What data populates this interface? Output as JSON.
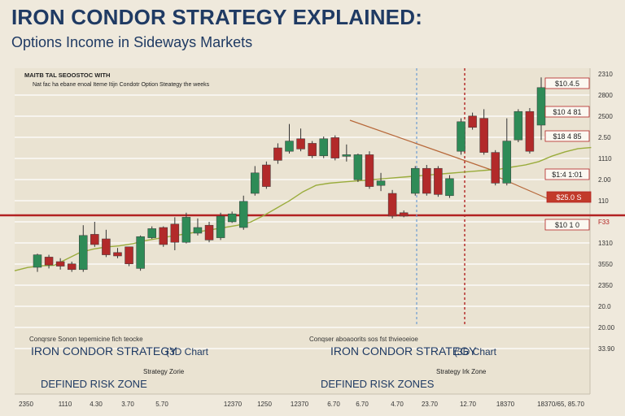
{
  "header": {
    "title": "IRON CONDOR STRATEGY EXPLAINED:",
    "subtitle": "Options  Income in Sideways Markets"
  },
  "chart_data": {
    "type": "candlestick",
    "note_line1": "MAITB TAL SEOOSTOC WITH",
    "note_line2": "Nat fac ha ebane enoal Iteme Itijn Condotr Option Steategy the weeks",
    "x_ticks": [
      "2350",
      "1110",
      "4.30",
      "3.70",
      "5.70",
      "12370",
      "1250",
      "12370",
      "6.70",
      "6.70",
      "4.70",
      "23.70",
      "12.70",
      "18370",
      "18370/65, 85.70"
    ],
    "y_ticks": [
      "2310",
      "2800",
      "2500",
      "2.50",
      "1110",
      "2.00",
      "110",
      "F33",
      "1310",
      "3550",
      "2350",
      "20.0",
      "20.00",
      "33.90"
    ],
    "y_tick_colors": [
      "#333333",
      "#333333",
      "#333333",
      "#333333",
      "#333333",
      "#333333",
      "#333333",
      "#b22222",
      "#333333",
      "#333333",
      "#333333",
      "#333333",
      "#333333",
      "#333333"
    ],
    "price_tags": [
      "$10.4.5",
      "$10 4 81",
      "$18 4 85",
      "$1:4 1:01",
      "$25.0 S",
      "$10 1 0"
    ],
    "candles": [
      {
        "o": 22.0,
        "c": 24.2,
        "h": 24.4,
        "l": 21.2
      },
      {
        "o": 23.8,
        "c": 22.4,
        "h": 24.2,
        "l": 21.8
      },
      {
        "o": 23.0,
        "c": 22.2,
        "h": 23.6,
        "l": 21.6
      },
      {
        "o": 22.6,
        "c": 21.6,
        "h": 23.0,
        "l": 21.2
      },
      {
        "o": 21.6,
        "c": 27.6,
        "h": 29.4,
        "l": 21.2
      },
      {
        "o": 27.8,
        "c": 26.0,
        "h": 30.0,
        "l": 25.6
      },
      {
        "o": 27.0,
        "c": 24.2,
        "h": 28.6,
        "l": 23.8
      },
      {
        "o": 24.6,
        "c": 24.0,
        "h": 25.4,
        "l": 23.6
      },
      {
        "o": 25.6,
        "c": 22.6,
        "h": 25.6,
        "l": 22.2
      },
      {
        "o": 21.8,
        "c": 27.4,
        "h": 27.6,
        "l": 21.4
      },
      {
        "o": 27.2,
        "c": 28.8,
        "h": 29.2,
        "l": 27.0
      },
      {
        "o": 29.0,
        "c": 26.0,
        "h": 29.2,
        "l": 25.6
      },
      {
        "o": 29.6,
        "c": 26.4,
        "h": 30.8,
        "l": 25.0
      },
      {
        "o": 26.4,
        "c": 30.8,
        "h": 31.6,
        "l": 26.2
      },
      {
        "o": 28.0,
        "c": 29.0,
        "h": 30.6,
        "l": 27.6
      },
      {
        "o": 29.4,
        "c": 26.8,
        "h": 30.0,
        "l": 26.4
      },
      {
        "o": 27.2,
        "c": 31.0,
        "h": 31.6,
        "l": 26.8
      },
      {
        "o": 30.0,
        "c": 31.4,
        "h": 31.8,
        "l": 29.8
      },
      {
        "o": 29.0,
        "c": 33.6,
        "h": 34.6,
        "l": 28.6
      },
      {
        "o": 35.0,
        "c": 38.6,
        "h": 39.8,
        "l": 34.6
      },
      {
        "o": 40.0,
        "c": 36.2,
        "h": 40.6,
        "l": 35.8
      },
      {
        "o": 43.0,
        "c": 40.8,
        "h": 43.8,
        "l": 40.2
      },
      {
        "o": 42.4,
        "c": 44.2,
        "h": 47.2,
        "l": 42.0
      },
      {
        "o": 44.6,
        "c": 42.8,
        "h": 46.4,
        "l": 42.4
      },
      {
        "o": 43.8,
        "c": 41.6,
        "h": 44.2,
        "l": 41.2
      },
      {
        "o": 41.6,
        "c": 44.6,
        "h": 45.0,
        "l": 41.2
      },
      {
        "o": 44.8,
        "c": 41.2,
        "h": 45.2,
        "l": 40.8
      },
      {
        "o": 41.8,
        "c": 41.8,
        "h": 43.6,
        "l": 40.6
      },
      {
        "o": 37.4,
        "c": 41.8,
        "h": 42.0,
        "l": 37.0
      },
      {
        "o": 41.8,
        "c": 36.2,
        "h": 42.4,
        "l": 35.8
      },
      {
        "o": 36.4,
        "c": 37.2,
        "h": 38.6,
        "l": 35.4
      },
      {
        "o": 35.0,
        "c": 31.0,
        "h": 35.6,
        "l": 30.6
      },
      {
        "o": 31.6,
        "c": 31.0,
        "h": 32.0,
        "l": 30.8
      },
      {
        "o": 35.0,
        "c": 39.4,
        "h": 39.8,
        "l": 34.6
      },
      {
        "o": 39.4,
        "c": 35.0,
        "h": 40.0,
        "l": 34.6
      },
      {
        "o": 39.4,
        "c": 34.8,
        "h": 39.8,
        "l": 34.4
      },
      {
        "o": 34.6,
        "c": 37.6,
        "h": 38.2,
        "l": 34.2
      },
      {
        "o": 42.4,
        "c": 47.6,
        "h": 48.2,
        "l": 41.8
      },
      {
        "o": 48.6,
        "c": 46.6,
        "h": 49.2,
        "l": 46.2
      },
      {
        "o": 48.2,
        "c": 42.2,
        "h": 49.8,
        "l": 41.8
      },
      {
        "o": 42.2,
        "c": 36.8,
        "h": 42.6,
        "l": 36.4
      },
      {
        "o": 36.8,
        "c": 44.2,
        "h": 48.2,
        "l": 36.4
      },
      {
        "o": 44.4,
        "c": 49.4,
        "h": 49.8,
        "l": 44.0
      },
      {
        "o": 49.4,
        "c": 42.4,
        "h": 50.0,
        "l": 42.0
      },
      {
        "o": 47.0,
        "c": 53.6,
        "h": 55.4,
        "l": 44.4
      }
    ],
    "moving_average": [
      22.0,
      22.6,
      22.9,
      23.0,
      24.2,
      25.4,
      26.0,
      26.4,
      26.6,
      27.0,
      27.6,
      28.0,
      28.4,
      28.8,
      29.2,
      29.6,
      30.0,
      30.4,
      31.0,
      32.2,
      33.6,
      35.0,
      36.6,
      37.8,
      38.2,
      38.4,
      38.6,
      38.8,
      39.0,
      39.2,
      39.4,
      39.6,
      39.8,
      40.0,
      40.2,
      40.4,
      40.6,
      40.8,
      41.2,
      41.6,
      42.2,
      43.2,
      44.0,
      44.6,
      44.8
    ],
    "downtrend": {
      "from": 22,
      "to": 37,
      "y_from": 45.5,
      "y_to": 40.5,
      "extend_to": 37.5
    },
    "trend_label_line": {
      "from": 37,
      "to": 41,
      "y_from": 37.5,
      "y_to": 34.0
    },
    "horizontal_line_value": 31.2,
    "vline_blue_index": 30,
    "vline_red_index": 35,
    "annotations": {
      "left_small": "Conqrsre Sonon tepemicine fich teocke",
      "left_title": "IRON CONDOR STRATEGY",
      "left_paren": "(3D Chart",
      "left_zone_label": "Strategy Zorie",
      "left_zone": "DEFINED RISK ZONE",
      "right_small": "Conqser aboaoorits  sos fst thvieoeioe",
      "right_title": "IRON CONDOR STRATEGY",
      "right_paren": "(3D Chart",
      "right_zone_label": "Strategy Irk Zone",
      "right_zone": "DEFINED RISK ZONES"
    },
    "colors": {
      "up": "#2e8b57",
      "down": "#b22a2a",
      "ma": "#9aac3c",
      "trend": "#b7683a",
      "hline": "#b22222",
      "vline_blue": "#6b9bd1",
      "vline_red": "#b22222",
      "grid": "#ffffff",
      "frame": "#c7bfae",
      "tag_border": "#b22222"
    }
  }
}
